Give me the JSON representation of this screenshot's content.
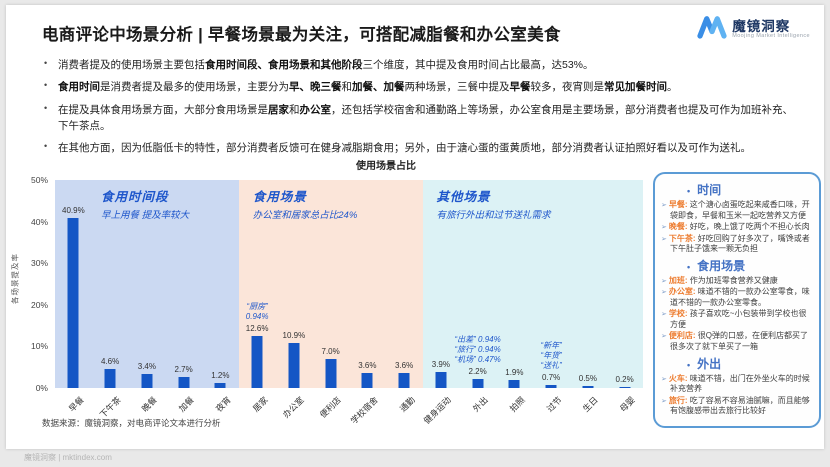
{
  "window": {
    "watermark": "魔镜洞察 | mktindex.com"
  },
  "header": {
    "title": "电商评论中场景分析 | 早餐场景最为关注，可搭配减脂餐和办公室美食",
    "logo": {
      "brand": "魔镜洞察",
      "tagline": "Moojing Market Intelligence"
    }
  },
  "summary_bullets": [
    {
      "segments": [
        {
          "t": "消费者提及的使用场景主要包括",
          "b": false
        },
        {
          "t": "食用时间段、食用场景和其他阶段",
          "b": true
        },
        {
          "t": "三个维度，其中提及食用时间占比最高，达53%。",
          "b": false
        }
      ]
    },
    {
      "segments": [
        {
          "t": "食用时间",
          "b": true
        },
        {
          "t": "是消费者提及最多的使用场景，主要分为",
          "b": false
        },
        {
          "t": "早、晚三餐",
          "b": true
        },
        {
          "t": "和",
          "b": false
        },
        {
          "t": "加餐、加餐",
          "b": true
        },
        {
          "t": "两种场景，三餐中提及",
          "b": false
        },
        {
          "t": "早餐",
          "b": true
        },
        {
          "t": "较多，夜宵则是",
          "b": false
        },
        {
          "t": "常见加餐时间",
          "b": true
        },
        {
          "t": "。",
          "b": false
        }
      ]
    },
    {
      "segments": [
        {
          "t": "在提及具体食用场景方面，大部分食用场景是",
          "b": false
        },
        {
          "t": "居家",
          "b": true
        },
        {
          "t": "和",
          "b": false
        },
        {
          "t": "办公室",
          "b": true
        },
        {
          "t": "，还包括学校宿舍和通勤路上等场景，办公室食用是主要场景，部分消费者也提及可作为加班补充、下午茶点。",
          "b": false
        }
      ]
    },
    {
      "segments": [
        {
          "t": "在其他方面，因为低脂低卡的特性，部分消费者反馈可在健身减脂期食用；另外，由于溏心蛋的蛋黄质地，部分消费者认证拍照好看以及可作为送礼。",
          "b": false
        }
      ]
    }
  ],
  "chart_data": {
    "type": "bar",
    "title": "使用场景占比",
    "ylabel": "各场景提及率",
    "ylim": [
      0,
      50
    ],
    "yticks": [
      "0%",
      "10%",
      "20%",
      "30%",
      "40%",
      "50%"
    ],
    "grid": false,
    "legend": "none",
    "bar_color": "#1456c5",
    "categories": [
      "早餐",
      "下午茶",
      "晚餐",
      "加餐",
      "夜宵",
      "居家",
      "办公室",
      "便利店",
      "学校宿舍",
      "通勤",
      "健身运动",
      "外出",
      "拍照",
      "过节",
      "生日",
      "母婴"
    ],
    "values": [
      40.9,
      4.6,
      3.4,
      2.7,
      1.2,
      12.6,
      10.9,
      7.0,
      3.6,
      3.6,
      3.9,
      2.2,
      1.9,
      0.7,
      0.5,
      0.2
    ],
    "value_labels": [
      "40.9%",
      "4.6%",
      "3.4%",
      "2.7%",
      "1.2%",
      "12.6%",
      "10.9%",
      "7.0%",
      "3.6%",
      "3.6%",
      "3.9%",
      "2.2%",
      "1.9%",
      "0.7%",
      "0.5%",
      "0.2%"
    ],
    "sections": [
      {
        "label": "食用时间段",
        "subtitle": "早上用餐 提及率较大",
        "start": 0,
        "count": 5,
        "bg": "#cbd9f2",
        "head_pad": 46
      },
      {
        "label": "食用场景",
        "subtitle": "办公室和居家总占比24%",
        "start": 5,
        "count": 5,
        "bg": "#fbe5d9",
        "head_pad": 14
      },
      {
        "label": "其他场景",
        "subtitle": "有旅行外出和过节送礼需求",
        "start": 10,
        "count": 6,
        "bg": "#dcf2f5",
        "head_pad": 14
      }
    ],
    "annotations": [
      {
        "index": 5,
        "lines": [
          "“厨房”",
          "0.94%"
        ]
      },
      {
        "index": 11,
        "lines": [
          "“出差”  0.94%",
          "“旅行”  0.94%",
          "“机场”  0.47%"
        ]
      },
      {
        "index": 13,
        "lines": [
          "“新年”",
          "“年货”",
          "“送礼”"
        ]
      }
    ]
  },
  "quote_panel": {
    "accent": "#4472c4",
    "label_color": "#ed7d31",
    "sections": [
      {
        "heading": "时间",
        "items": [
          {
            "label": "早餐",
            "text": "这个溏心卤蛋吃起来咸香口味，开袋即食，早餐和玉米一起吃营养又方便"
          },
          {
            "label": "晚餐",
            "text": "好吃，晚上饿了吃两个不担心长肉"
          },
          {
            "label": "下午茶",
            "text": "好吃回购了好多次了，嘴馋或者下午肚子饿来一颗无负担"
          }
        ]
      },
      {
        "heading": "食用场景",
        "items": [
          {
            "label": "加班",
            "text": "作为加班零食营养又健康"
          },
          {
            "label": "办公室",
            "text": "味道不错的一款办公室零食，味道不错的一款办公室零食。"
          },
          {
            "label": "学校",
            "text": "孩子喜欢吃~小包装带到学校也很方便"
          },
          {
            "label": "便利店",
            "text": "很Q弹的口感，在便利店都买了很多次了就下单买了一箱"
          }
        ]
      },
      {
        "heading": "外出",
        "items": [
          {
            "label": "火车",
            "text": "味道不错，出门在外坐火车的时候补充营养"
          },
          {
            "label": "旅行",
            "text": "吃了容易不容易油腻嘛，而且能够有饱腹感带出去旅行比较好"
          }
        ]
      }
    ]
  },
  "footer": {
    "source": "数据来源：魔镜洞察，对电商评论文本进行分析"
  }
}
